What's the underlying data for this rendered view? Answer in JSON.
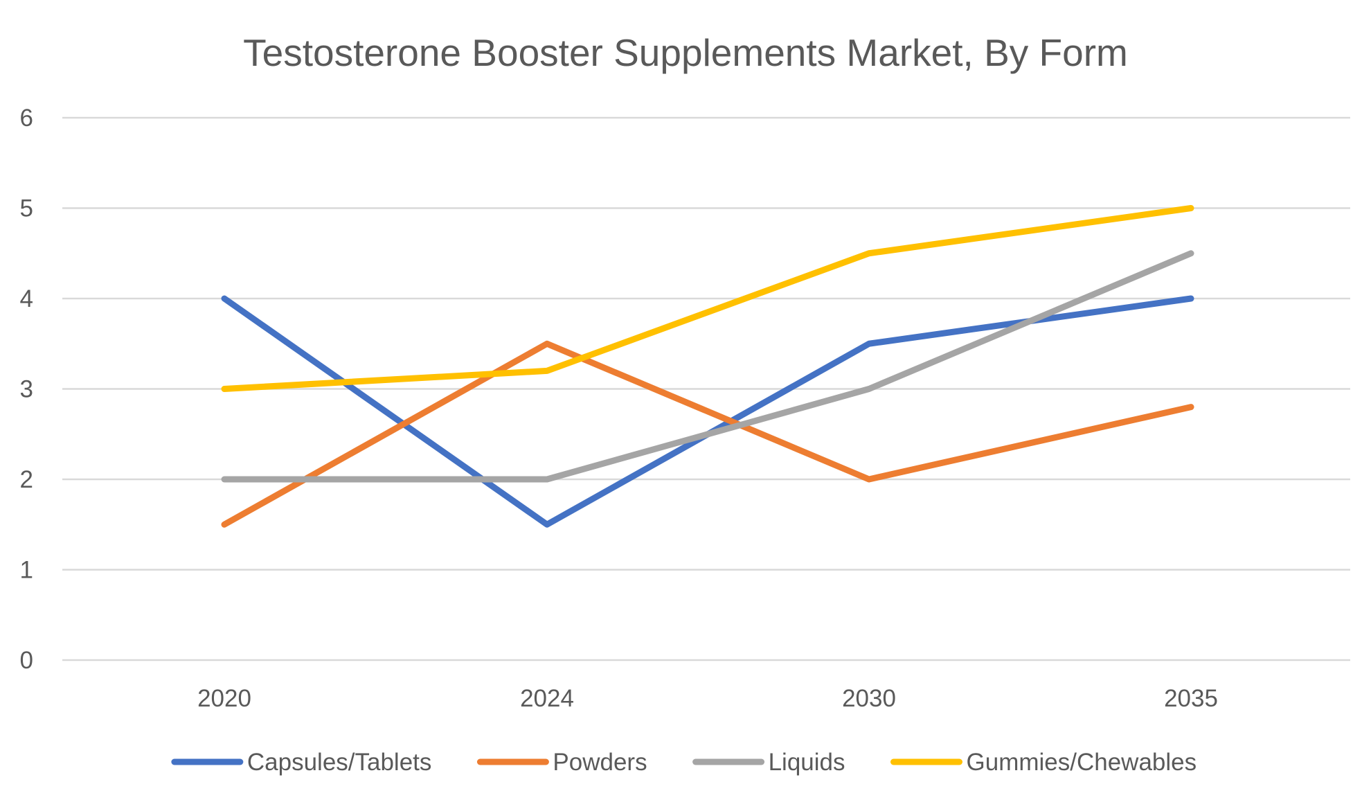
{
  "chart_data": {
    "type": "line",
    "title": "Testosterone Booster Supplements Market, By Form",
    "xlabel": "",
    "ylabel": "",
    "categories": [
      "2020",
      "2024",
      "2030",
      "2035"
    ],
    "ylim": [
      0,
      6
    ],
    "yticks": [
      "0",
      "1",
      "2",
      "3",
      "4",
      "5",
      "6"
    ],
    "grid": true,
    "legend_position": "bottom",
    "series": [
      {
        "name": "Capsules/Tablets",
        "color": "#4472C4",
        "values": [
          4,
          1.5,
          3.5,
          4
        ]
      },
      {
        "name": "Powders",
        "color": "#ED7D31",
        "values": [
          1.5,
          3.5,
          2,
          2.8
        ]
      },
      {
        "name": "Liquids",
        "color": "#A5A5A5",
        "values": [
          2,
          2,
          3,
          4.5
        ]
      },
      {
        "name": "Gummies/Chewables",
        "color": "#FFC000",
        "values": [
          3,
          3.2,
          4.5,
          5
        ]
      }
    ]
  }
}
